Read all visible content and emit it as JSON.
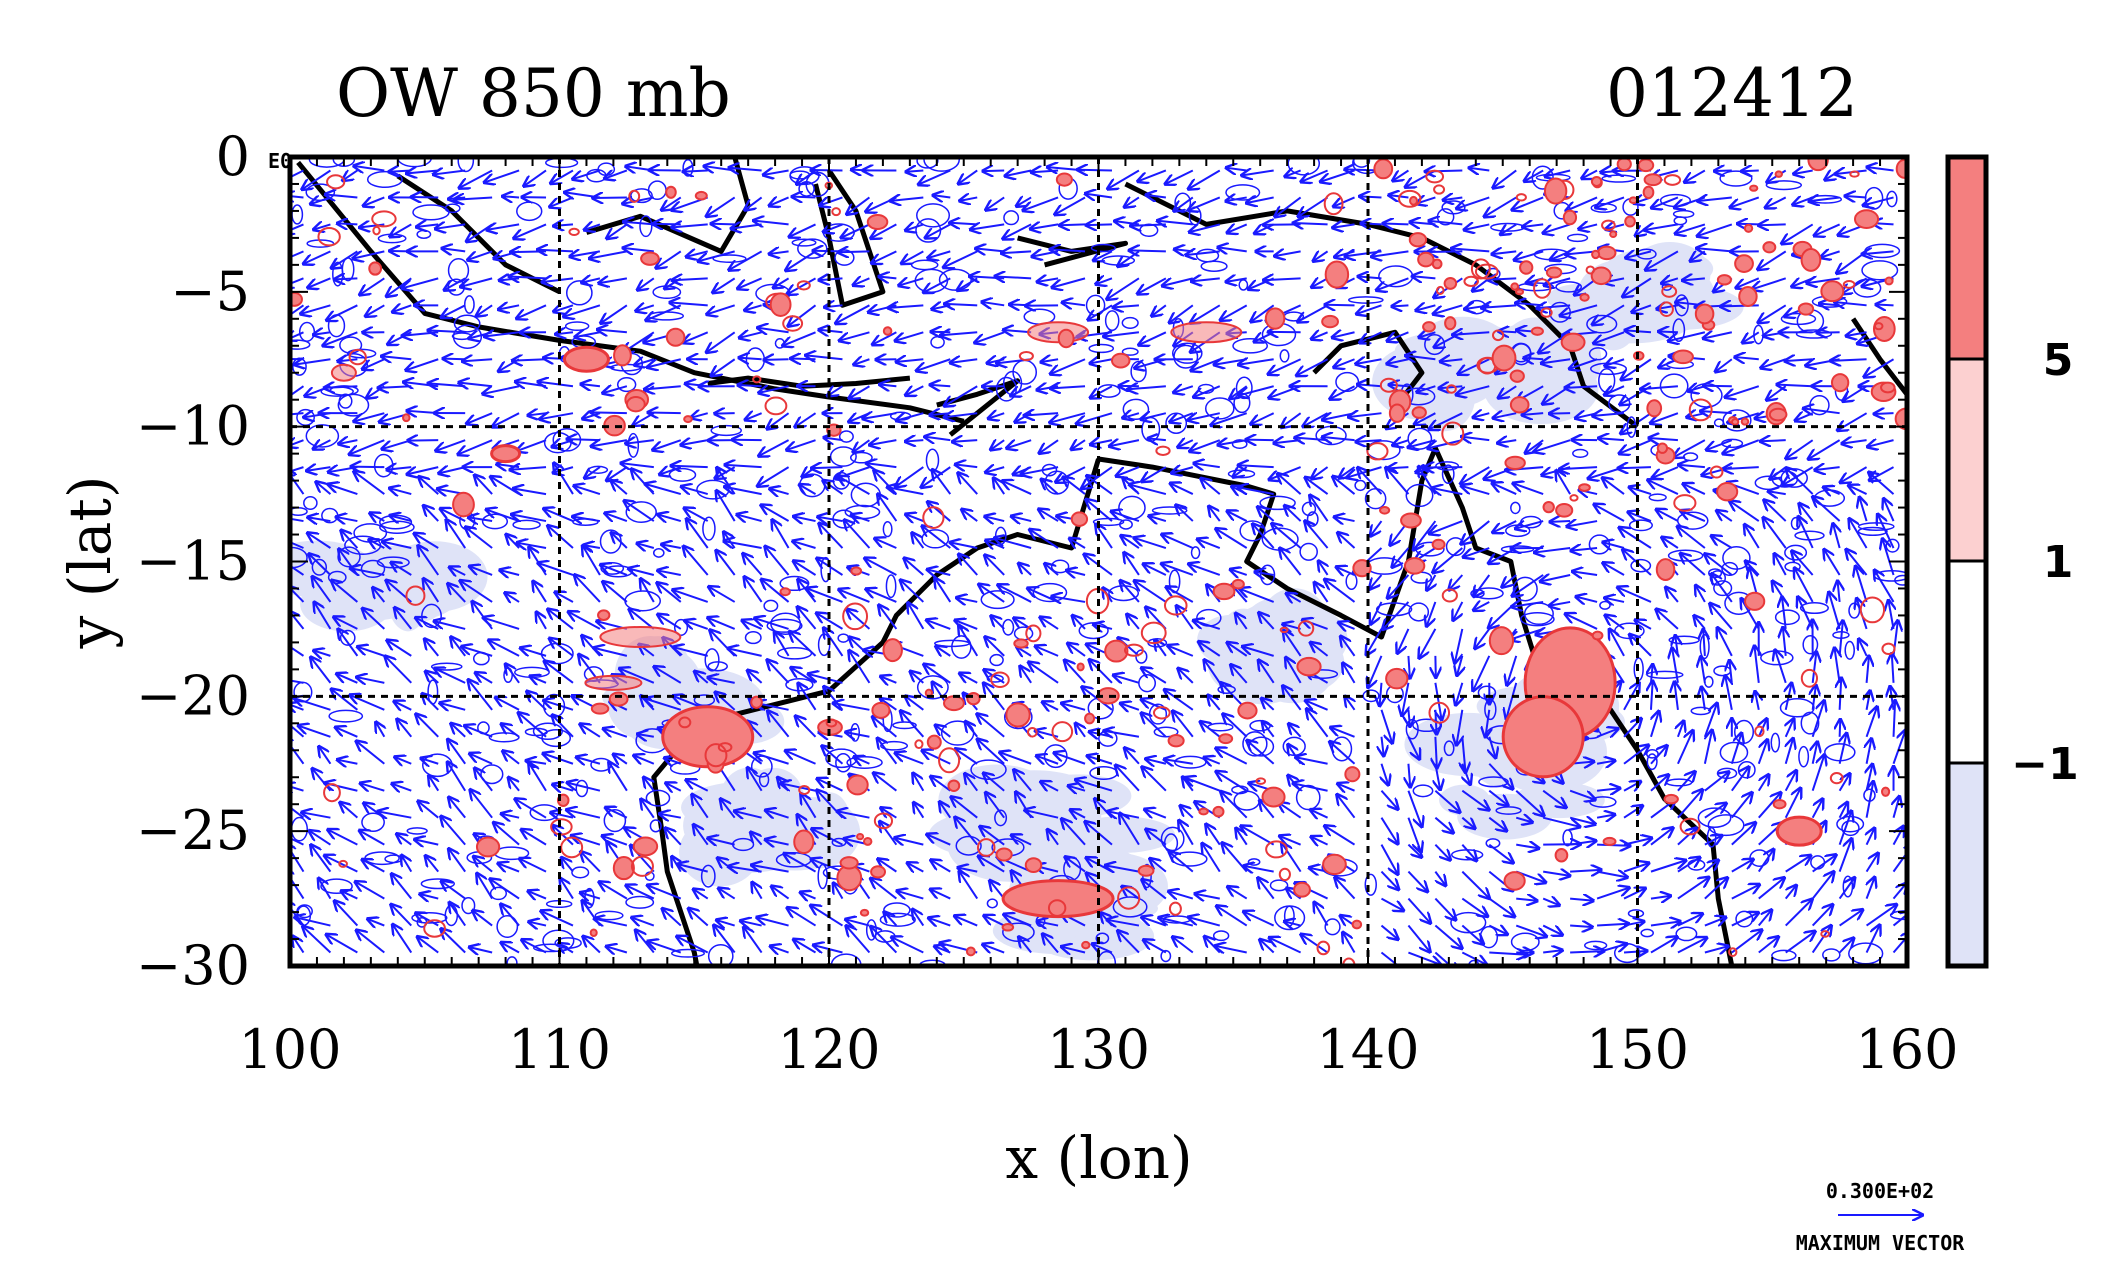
{
  "chart_data": {
    "type": "map",
    "title_left": "OW 850 mb",
    "title_right": "012412",
    "xlabel": "x (lon)",
    "ylabel": "y (lat)",
    "xlim": [
      100,
      160
    ],
    "ylim": [
      -30,
      0
    ],
    "x_ticks": [
      100,
      110,
      120,
      130,
      140,
      150,
      160
    ],
    "y_ticks": [
      0,
      -5,
      -10,
      -15,
      -20,
      -25,
      -30
    ],
    "y_tick_labels": [
      "0",
      "−5",
      "−10",
      "−15",
      "−20",
      "−25",
      "−30"
    ],
    "corner_label": "E0",
    "grid_lons": [
      110,
      120,
      130,
      140,
      150
    ],
    "grid_lats": [
      -10,
      -20
    ],
    "colorbar": {
      "levels_labels": [
        "5",
        "1",
        "−1"
      ],
      "colors": [
        "#f47f7f",
        "#fcd0d0",
        "#ffffff",
        "#dfe3f7"
      ]
    },
    "vector_reference": {
      "value_label": "0.300E+02",
      "caption": "MAXIMUM VECTOR",
      "color": "#1a1aff"
    },
    "colors": {
      "vector": "#1a1aff",
      "positive_ow": "#e8383a",
      "positive_fill": "#f47f7f",
      "negative_fill": "#dfe3f7",
      "coast": "#000000"
    }
  }
}
